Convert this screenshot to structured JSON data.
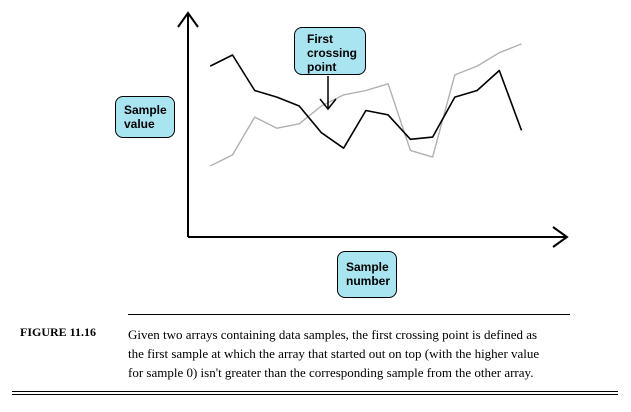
{
  "chart_data": {
    "type": "line",
    "title": "",
    "xlabel": [
      "Sample",
      "number"
    ],
    "ylabel": [
      "Sample",
      "value"
    ],
    "annotation": [
      "First",
      "crossing",
      "point"
    ],
    "x": [
      0,
      1,
      2,
      3,
      4,
      5,
      6,
      7,
      8,
      9,
      10,
      11,
      12,
      13,
      14
    ],
    "xlim": [
      -1,
      16
    ],
    "ylim": [
      0,
      10
    ],
    "grid": false,
    "legend": "none",
    "crossing_index": 5,
    "series": [
      {
        "color": "#000000",
        "values": [
          7.7,
          8.2,
          6.6,
          6.3,
          5.9,
          4.7,
          4.0,
          5.7,
          5.5,
          4.4,
          4.5,
          6.3,
          6.6,
          7.5,
          4.8
        ]
      },
      {
        "color": "#b0b0b0",
        "values": [
          3.2,
          3.7,
          5.4,
          4.9,
          5.1,
          5.9,
          6.4,
          6.6,
          6.9,
          3.9,
          3.6,
          7.3,
          7.7,
          8.3,
          8.7
        ]
      }
    ]
  },
  "caption": {
    "label": "FIGURE 11.16",
    "lines": [
      "Given two arrays containing data samples, the first crossing point is defined as",
      "the first sample at which the array that started out on top (with the higher value",
      "for sample 0) isn't greater than the corresponding sample from the other array."
    ]
  }
}
